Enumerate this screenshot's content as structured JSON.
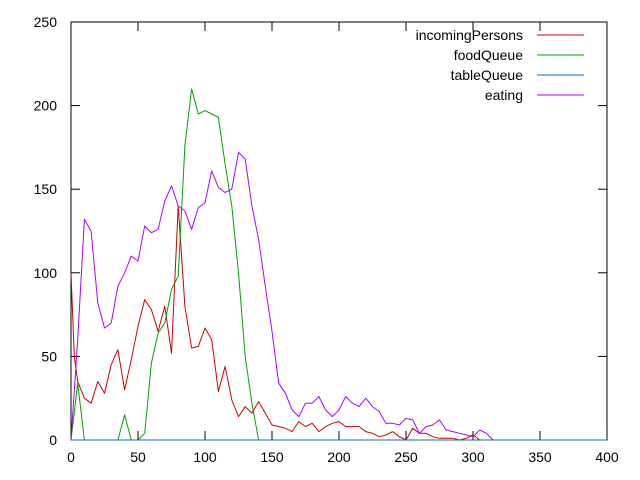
{
  "chart_data": {
    "type": "line",
    "title": "",
    "xlabel": "",
    "ylabel": "",
    "xlim": [
      0,
      400
    ],
    "ylim": [
      0,
      250
    ],
    "xticks": [
      0,
      50,
      100,
      150,
      200,
      250,
      300,
      350,
      400
    ],
    "yticks": [
      0,
      50,
      100,
      150,
      200,
      250
    ],
    "xtick_labels": [
      "0",
      "50",
      "100",
      "150",
      "200",
      "250",
      "300",
      "350",
      "400"
    ],
    "ytick_labels": [
      "0",
      "50",
      "100",
      "150",
      "200",
      "250"
    ],
    "grid": false,
    "legend": "top-right",
    "series": [
      {
        "name": "incomingPersons",
        "color": "#cc0000",
        "x": [
          0,
          2.5,
          5,
          10,
          15,
          20,
          25,
          30,
          35,
          40,
          45,
          50,
          55,
          60,
          65,
          70,
          75,
          80,
          85,
          90,
          95,
          100,
          105,
          110,
          115,
          120,
          125,
          130,
          135,
          140,
          145,
          150,
          155,
          160,
          165,
          170,
          175,
          180,
          185,
          190,
          195,
          200,
          205,
          210,
          215,
          220,
          225,
          230,
          235,
          240,
          245,
          250,
          255,
          260,
          265,
          270,
          275,
          280,
          285,
          290,
          295,
          300,
          305,
          310
        ],
        "y": [
          100,
          50,
          35,
          25,
          22,
          35,
          28,
          45,
          54,
          30,
          48,
          68,
          84,
          78,
          65,
          80,
          52,
          140,
          80,
          55,
          56,
          67,
          60,
          29,
          44,
          24,
          14,
          20,
          16,
          23,
          16,
          9,
          8,
          7,
          5,
          11,
          8,
          10,
          5,
          8,
          10,
          11,
          8,
          8,
          8,
          5,
          4,
          2,
          3,
          5,
          2,
          0,
          7,
          4,
          4,
          2,
          1,
          1,
          1,
          0,
          1,
          3,
          0,
          0
        ]
      },
      {
        "name": "foodQueue",
        "color": "#00a000",
        "x": [
          0,
          5,
          10,
          15,
          20,
          25,
          30,
          35,
          40,
          45,
          50,
          55,
          60,
          65,
          70,
          75,
          80,
          85,
          90,
          95,
          100,
          105,
          110,
          115,
          120,
          125,
          130,
          135,
          140,
          145
        ],
        "y": [
          0,
          34,
          0,
          0,
          0,
          0,
          0,
          0,
          15,
          0,
          0,
          4,
          46,
          64,
          70,
          90,
          98,
          176,
          210,
          195,
          197,
          195,
          193,
          165,
          140,
          100,
          50,
          22,
          0,
          0
        ]
      },
      {
        "name": "tableQueue",
        "color": "#0070c0",
        "x": [
          0,
          400
        ],
        "y": [
          0,
          0
        ]
      },
      {
        "name": "eating",
        "color": "#aa00ff",
        "x": [
          0,
          5,
          10,
          15,
          20,
          25,
          30,
          35,
          40,
          45,
          50,
          55,
          60,
          65,
          70,
          75,
          80,
          85,
          90,
          95,
          100,
          105,
          110,
          115,
          120,
          125,
          130,
          135,
          140,
          145,
          150,
          155,
          160,
          165,
          170,
          175,
          180,
          185,
          190,
          195,
          200,
          205,
          210,
          215,
          220,
          225,
          230,
          235,
          240,
          245,
          250,
          255,
          260,
          265,
          270,
          275,
          280,
          285,
          290,
          295,
          300,
          305,
          310,
          315
        ],
        "y": [
          0,
          60,
          132,
          125,
          82,
          67,
          70,
          92,
          100,
          110,
          107,
          128,
          124,
          126,
          143,
          152,
          140,
          137,
          126,
          139,
          142,
          161,
          151,
          148,
          150,
          172,
          168,
          140,
          120,
          92,
          65,
          34,
          28,
          18,
          14,
          22,
          22,
          26,
          18,
          14,
          18,
          26,
          22,
          20,
          25,
          20,
          17,
          10,
          10,
          9,
          13,
          12,
          4,
          8,
          9,
          12,
          6,
          5,
          4,
          3,
          2,
          6,
          4,
          0
        ]
      }
    ]
  }
}
